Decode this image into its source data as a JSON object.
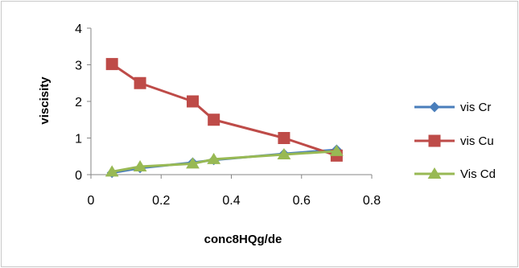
{
  "chart_data": {
    "type": "line",
    "title": "",
    "xlabel": "conc8HQg/de",
    "ylabel": "viscisity",
    "xlim": [
      0,
      0.8
    ],
    "ylim": [
      0,
      4
    ],
    "x_ticks": [
      "0",
      "0.2",
      "0.4",
      "0.6",
      "0.8"
    ],
    "y_ticks": [
      "0",
      "1",
      "2",
      "3",
      "4"
    ],
    "x_tick_values": [
      0,
      0.2,
      0.4,
      0.6,
      0.8
    ],
    "y_tick_values": [
      0,
      1,
      2,
      3,
      4
    ],
    "grid": false,
    "legend_position": "right",
    "series": [
      {
        "name": "vis Cr",
        "color": "#4a7ebb",
        "marker": "diamond",
        "x": [
          0.06,
          0.14,
          0.29,
          0.35,
          0.55,
          0.7
        ],
        "y": [
          0.05,
          0.18,
          0.33,
          0.4,
          0.57,
          0.68
        ]
      },
      {
        "name": "vis Cu",
        "color": "#be4b48",
        "marker": "square",
        "x": [
          0.06,
          0.14,
          0.29,
          0.35,
          0.55,
          0.7
        ],
        "y": [
          3.02,
          2.5,
          2.0,
          1.5,
          1.0,
          0.52
        ]
      },
      {
        "name": "Vis Cd",
        "color": "#98b954",
        "marker": "triangle",
        "x": [
          0.06,
          0.14,
          0.29,
          0.35,
          0.55,
          0.7
        ],
        "y": [
          0.08,
          0.22,
          0.3,
          0.42,
          0.55,
          0.64
        ]
      }
    ]
  }
}
